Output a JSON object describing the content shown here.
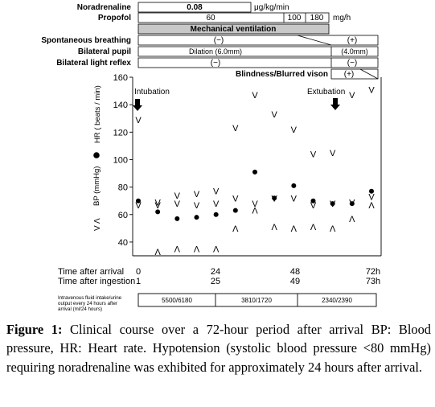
{
  "rows": {
    "noradrenaline": {
      "label": "Noradrenaline",
      "value": "0.08",
      "unit": "μg/kg/min"
    },
    "propofol": {
      "label": "Propofol",
      "values": [
        "60",
        "100",
        "180"
      ],
      "unit": "mg/h"
    },
    "mech_vent": {
      "label": "Mechanical ventilation"
    },
    "spont": {
      "label": "Spontaneous breathing",
      "minus": "(−)",
      "plus": "(+)"
    },
    "pupil": {
      "label": "Bilateral pupil",
      "left": "Dilation (6.0mm)",
      "right": "(4.0mm)"
    },
    "light": {
      "label": "Bilateral light reflex",
      "minus": "(−)",
      "right": "(−)"
    },
    "blind": {
      "label": "Blindness/Blurred vison",
      "value": "(+)"
    }
  },
  "annotations": {
    "intubation": "Intubation",
    "extubation": "Extubation"
  },
  "chart_data": {
    "type": "scatter",
    "y_range": [
      30,
      160
    ],
    "y_ticks": [
      "160",
      "140",
      "120",
      "100",
      "80",
      "60",
      "40"
    ],
    "legend": {
      "hr_label": "HR ( beats / min)",
      "bp_label": "BP (mmHg)"
    },
    "x": [
      0,
      4,
      8,
      12,
      16,
      20,
      24,
      28,
      32,
      36,
      40,
      44,
      48
    ],
    "hr": [
      129,
      69,
      74,
      75,
      77,
      123,
      147,
      133,
      122,
      104,
      105,
      147,
      151
    ],
    "bp_mean": [
      70,
      62,
      57,
      58,
      60,
      63,
      91,
      72,
      81,
      70,
      68,
      68,
      77
    ],
    "bp_systolic": [
      67,
      67,
      68,
      67,
      68,
      72,
      68,
      72,
      72,
      67,
      68,
      69,
      73
    ],
    "bp_diastolic": [
      null,
      33,
      35,
      35,
      35,
      50,
      63,
      51,
      50,
      51,
      50,
      57,
      67
    ],
    "arrival": {
      "label": "Time after arrival",
      "ticks": [
        "0",
        "24",
        "48",
        "72h"
      ]
    },
    "ingestion": {
      "label": "Time after ingestion",
      "ticks": [
        "1",
        "25",
        "49",
        "73h"
      ]
    }
  },
  "fluid": {
    "label_lines": [
      "Intravenous fluid intake/urine",
      "output every 24 hours after",
      "arrival (ml/24 hours)"
    ],
    "values": [
      "5500/6180",
      "3810/1720",
      "2340/2390"
    ]
  },
  "caption": {
    "fig": "Figure 1:",
    "text": " Clinical course over a 72-hour period after arrival BP: Blood pressure, HR: Heart rate. Hypotension (systolic blood pressure <80 mmHg) requiring noradrenaline was exhibited for approximately 24 hours after arrival."
  }
}
